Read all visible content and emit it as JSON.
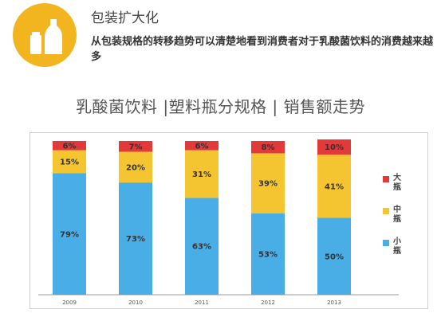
{
  "header": {
    "title": "包装扩大化",
    "description": "从包装规格的转移趋势可以清楚地看到消费者对于乳酸菌饮料的消费越来越多",
    "badge_icon": "bottles-icon"
  },
  "chart_data": {
    "type": "bar",
    "stacked": true,
    "orientation": "vertical",
    "title": "乳酸菌饮料 |塑料瓶分规格 | 销售额走势",
    "xlabel": "",
    "ylabel": "",
    "ylim": [
      0,
      100
    ],
    "grid": false,
    "legend_position": "right",
    "categories": [
      "2009",
      "2010",
      "2011",
      "2012",
      "2013"
    ],
    "series": [
      {
        "name": "小瓶",
        "color": "#4aaee6",
        "values": [
          79,
          73,
          63,
          53,
          50
        ],
        "labels": [
          "79%",
          "73%",
          "63%",
          "53%",
          "50%"
        ]
      },
      {
        "name": "中瓶",
        "color": "#f5c531",
        "values": [
          15,
          20,
          31,
          39,
          41
        ],
        "labels": [
          "15%",
          "20%",
          "31%",
          "39%",
          "41%"
        ]
      },
      {
        "name": "大瓶",
        "color": "#e2393a",
        "values": [
          6,
          7,
          6,
          8,
          10
        ],
        "labels": [
          "6%",
          "7%",
          "6%",
          "8%",
          "10%"
        ]
      }
    ],
    "legend_order": [
      "大瓶",
      "中瓶",
      "小瓶"
    ]
  }
}
